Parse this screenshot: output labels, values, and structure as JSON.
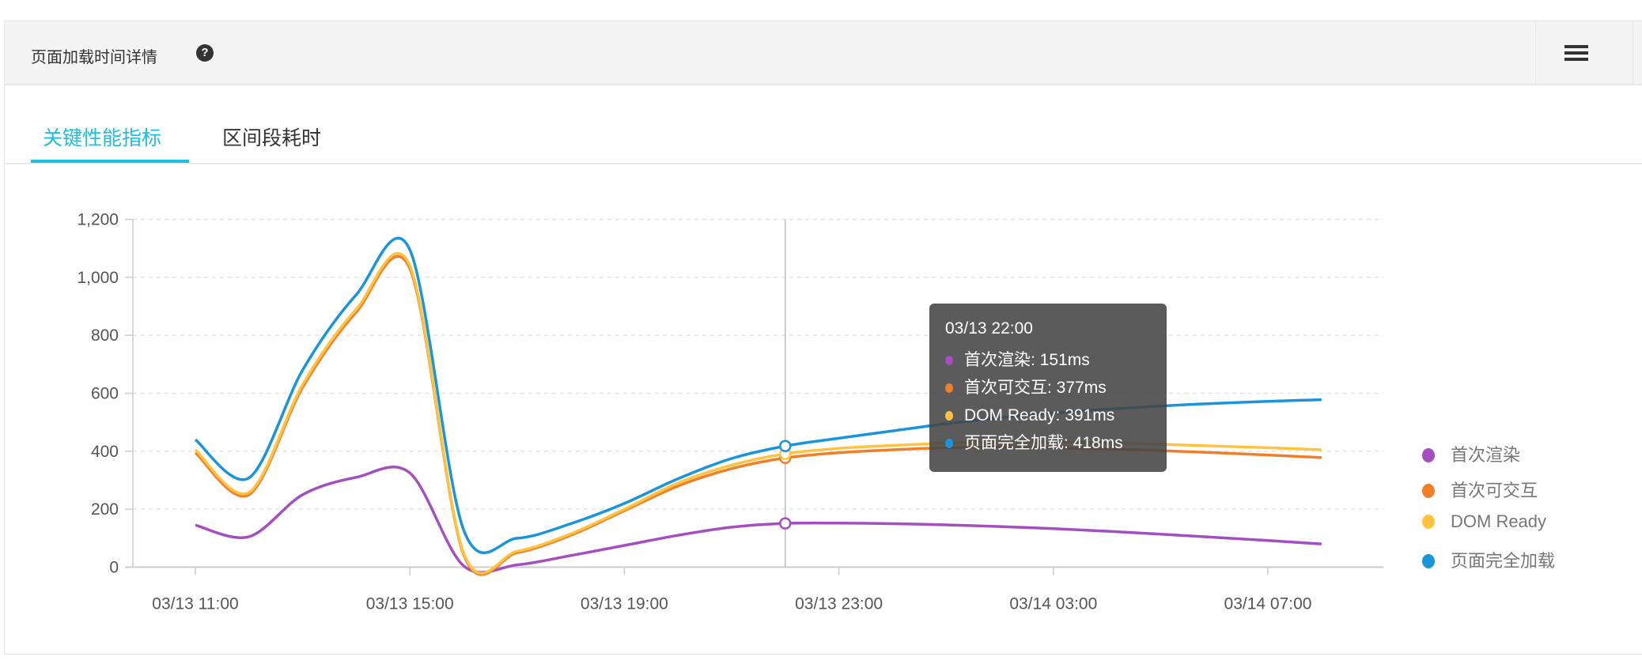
{
  "panel": {
    "title": "页面加载时间详情",
    "help_icon": "question-circle-icon",
    "menu_icon": "list-icon"
  },
  "tabs": [
    {
      "label": "关键性能指标",
      "active": true
    },
    {
      "label": "区间段耗时",
      "active": false
    }
  ],
  "tooltip": {
    "title": "03/13 22:00",
    "rows": [
      "首次渲染: 151ms",
      "首次可交互: 377ms",
      "DOM Ready: 391ms",
      "页面完全加载: 418ms"
    ]
  },
  "chart_data": {
    "type": "line",
    "title": "",
    "xlabel": "",
    "ylabel": "",
    "ylim": [
      0,
      1200
    ],
    "yticks": [
      0,
      200,
      400,
      600,
      800,
      1000,
      1200
    ],
    "ytick_labels": [
      "0",
      "200",
      "400",
      "600",
      "800",
      "1,000",
      "1,200"
    ],
    "grid": true,
    "legend_position": "right",
    "x": [
      "03/13 11:00",
      "03/13 12:00",
      "03/13 13:00",
      "03/13 14:00",
      "03/13 15:00",
      "03/13 16:00",
      "03/13 17:00",
      "03/13 18:00",
      "03/13 19:00",
      "03/13 20:00",
      "03/13 21:00",
      "03/13 22:00",
      "03/13 23:00",
      "03/14 00:00",
      "03/14 01:00",
      "03/14 02:00",
      "03/14 03:00",
      "03/14 04:00",
      "03/14 05:00",
      "03/14 06:00",
      "03/14 07:00",
      "03/14 08:00"
    ],
    "xtick_labels": [
      "03/13 11:00",
      "03/13 15:00",
      "03/13 19:00",
      "03/13 23:00",
      "03/14 03:00",
      "03/14 07:00"
    ],
    "highlight_index": 11,
    "series": [
      {
        "name": "首次渲染",
        "color": "#a44fc0",
        "values": [
          145,
          105,
          250,
          310,
          325,
          5,
          8,
          40,
          75,
          110,
          138,
          151,
          152,
          150,
          146,
          140,
          133,
          124,
          114,
          103,
          92,
          80
        ]
      },
      {
        "name": "首次可交互",
        "color": "#f07f2a",
        "values": [
          395,
          250,
          620,
          880,
          1030,
          45,
          50,
          110,
          195,
          280,
          340,
          377,
          395,
          405,
          412,
          414,
          412,
          408,
          402,
          395,
          387,
          378
        ]
      },
      {
        "name": "DOM Ready",
        "color": "#ffc340",
        "values": [
          405,
          258,
          630,
          890,
          1040,
          50,
          55,
          115,
          200,
          290,
          352,
          391,
          410,
          420,
          428,
          432,
          432,
          429,
          424,
          418,
          412,
          405
        ]
      },
      {
        "name": "页面完全加载",
        "color": "#1a94db",
        "values": [
          440,
          308,
          680,
          940,
          1095,
          130,
          100,
          150,
          220,
          305,
          375,
          418,
          445,
          470,
          495,
          515,
          532,
          545,
          556,
          565,
          572,
          578
        ]
      }
    ]
  }
}
